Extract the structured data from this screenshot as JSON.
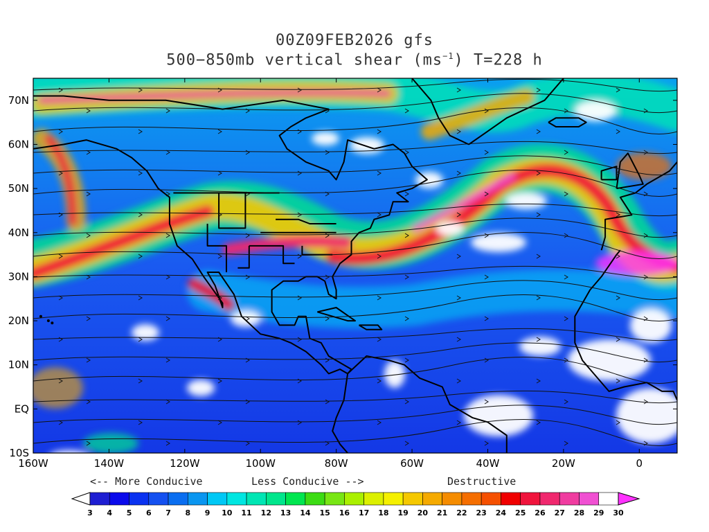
{
  "title": {
    "line1": "00Z09FEB2026 gfs",
    "line2_pre": "500−850mb vertical shear (ms",
    "line2_sup": "−1",
    "line2_post": ") T=228 h"
  },
  "map": {
    "lon_range": [
      -160,
      10
    ],
    "lat_range": [
      -10,
      75
    ],
    "x_ticks": [
      {
        "value": -160,
        "label": "160W"
      },
      {
        "value": -140,
        "label": "140W"
      },
      {
        "value": -120,
        "label": "120W"
      },
      {
        "value": -100,
        "label": "100W"
      },
      {
        "value": -80,
        "label": "80W"
      },
      {
        "value": -60,
        "label": "60W"
      },
      {
        "value": -40,
        "label": "40W"
      },
      {
        "value": -20,
        "label": "20W"
      },
      {
        "value": 0,
        "label": "0"
      }
    ],
    "y_ticks": [
      {
        "value": 70,
        "label": "70N"
      },
      {
        "value": 60,
        "label": "60N"
      },
      {
        "value": 50,
        "label": "50N"
      },
      {
        "value": 40,
        "label": "40N"
      },
      {
        "value": 30,
        "label": "30N"
      },
      {
        "value": 20,
        "label": "20N"
      },
      {
        "value": 10,
        "label": "10N"
      },
      {
        "value": 0,
        "label": "EQ"
      },
      {
        "value": -10,
        "label": "10S"
      }
    ]
  },
  "notes": {
    "more_conducive": "<-- More Conducive",
    "less_conducive": "Less Conducive -->",
    "destructive": "Destructive"
  },
  "colorbar": {
    "labels": [
      "3",
      "4",
      "5",
      "6",
      "7",
      "8",
      "9",
      "10",
      "11",
      "12",
      "13",
      "14",
      "15",
      "16",
      "17",
      "18",
      "19",
      "20",
      "21",
      "22",
      "23",
      "24",
      "25",
      "26",
      "27",
      "28",
      "29",
      "30"
    ],
    "colors": [
      "#ffffff",
      "#1e1ed2",
      "#0a0aeb",
      "#0a32f0",
      "#1450f0",
      "#0a6ef0",
      "#0a96f0",
      "#00c8f5",
      "#00e6e1",
      "#00e6b4",
      "#00e68c",
      "#00e650",
      "#3cdc14",
      "#78e614",
      "#aaf000",
      "#dcf000",
      "#f5f000",
      "#f5c800",
      "#f5aa00",
      "#f58c00",
      "#f56e00",
      "#f55000",
      "#f00000",
      "#f0143c",
      "#f0286e",
      "#f03ca0",
      "#f050d2",
      "#ffffff"
    ],
    "under_color": "#ffffff",
    "over_color": "#ff32ff"
  }
}
